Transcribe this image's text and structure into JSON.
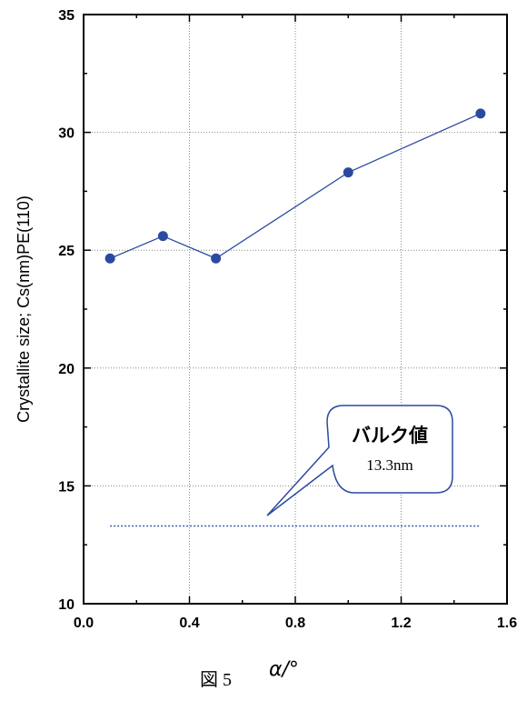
{
  "chart_data": {
    "type": "line",
    "x": [
      0.1,
      0.3,
      0.5,
      1.0,
      1.5
    ],
    "series": [
      {
        "values": [
          24.65,
          25.6,
          24.65,
          28.3,
          30.8
        ],
        "color": "#2a4aa0"
      }
    ],
    "reference_line": {
      "value": 13.3,
      "x_range": [
        0.1,
        1.5
      ],
      "color": "#3a5cb0",
      "style": "dotted"
    },
    "xlabel": "α/°",
    "ylabel": "Crystallite size; Cs(nm)PE(110)",
    "xlim": [
      0.0,
      1.6
    ],
    "ylim": [
      10,
      35
    ],
    "x_ticks": [
      "0.0",
      "0.4",
      "0.8",
      "1.2",
      "1.6"
    ],
    "y_ticks": [
      "10",
      "15",
      "20",
      "25",
      "30",
      "35"
    ],
    "grid": true,
    "annotation": {
      "title": "バルク値",
      "value": "13.3nm",
      "border_color": "#2a4aa0"
    },
    "caption": "図 5"
  }
}
